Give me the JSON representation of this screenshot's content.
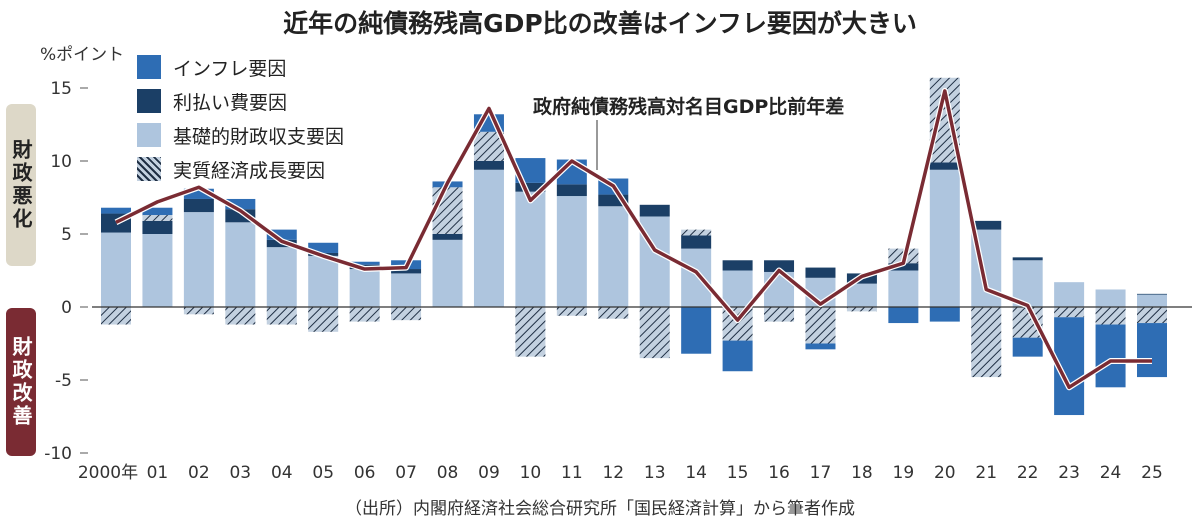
{
  "title": "近年の純債務残高GDP比の改善はインフレ要因が大きい",
  "unit": "%ポイント",
  "side_labels": {
    "worse": "財政悪化",
    "better": "財政改善"
  },
  "annotation": "政府純債務残高対名目GDP比前年差",
  "source": "（出所）内閣府経済社会総合研究所「国民経済計算」から筆者作成",
  "colors": {
    "inflation": "#2e6db4",
    "interest": "#1b3f66",
    "primary": "#aec5de",
    "growth_bg": "#c3d1e0",
    "growth_line": "#1f2f44",
    "line": "#7a2b33"
  },
  "chart_data": {
    "type": "bar",
    "stacked": true,
    "title": "近年の純債務残高GDP比の改善はインフレ要因が大きい",
    "ylabel": "%ポイント",
    "ylim": [
      -10,
      15
    ],
    "yticks": [
      "-10",
      "-5",
      "0",
      "5",
      "10",
      "15"
    ],
    "categories": [
      "2000年",
      "01",
      "02",
      "03",
      "04",
      "05",
      "06",
      "07",
      "08",
      "09",
      "10",
      "11",
      "12",
      "13",
      "14",
      "15",
      "16",
      "17",
      "18",
      "19",
      "20",
      "21",
      "22",
      "23",
      "24",
      "25"
    ],
    "series": [
      {
        "name": "インフレ要因",
        "key": "inflation",
        "values": [
          0.4,
          0.5,
          0.7,
          0.7,
          0.7,
          0.7,
          0.2,
          0.6,
          0.4,
          1.2,
          1.7,
          1.7,
          1.1,
          0,
          -3.2,
          -2.1,
          0,
          -0.4,
          0,
          -1.1,
          -1.0,
          0,
          -1.3,
          -6.7,
          -4.3,
          -3.7
        ]
      },
      {
        "name": "利払い費要因",
        "key": "interest",
        "values": [
          1.3,
          0.9,
          0.9,
          0.9,
          0.5,
          0.2,
          0.3,
          0.3,
          0.4,
          0.6,
          0.6,
          0.8,
          0.8,
          0.8,
          0.9,
          0.7,
          0.8,
          0.7,
          0.7,
          0.5,
          0.5,
          0.6,
          0.2,
          0,
          0,
          0.05
        ]
      },
      {
        "name": "基礎的財政収支要因",
        "key": "primary",
        "values": [
          5.1,
          5.0,
          6.5,
          5.8,
          4.1,
          3.5,
          2.6,
          2.3,
          4.6,
          9.4,
          7.9,
          7.6,
          6.9,
          6.2,
          4.0,
          2.5,
          2.4,
          2.0,
          1.6,
          2.5,
          9.4,
          5.3,
          3.2,
          1.7,
          1.2,
          0.85
        ]
      },
      {
        "name": "実質経済成長要因",
        "key": "growth",
        "values": [
          -1.2,
          0.4,
          -0.5,
          -1.2,
          -1.2,
          -1.7,
          -1.0,
          -0.9,
          3.2,
          2.0,
          -3.4,
          -0.6,
          -0.8,
          -3.5,
          0.4,
          -2.3,
          -1.0,
          -2.5,
          -0.3,
          1.0,
          5.8,
          -4.8,
          -2.1,
          -0.7,
          -1.2,
          -1.1
        ]
      }
    ],
    "line": {
      "name": "政府純債務残高対名目GDP比前年差",
      "values": [
        5.8,
        7.2,
        8.2,
        6.6,
        4.5,
        3.5,
        2.6,
        2.7,
        8.5,
        13.6,
        7.3,
        10.0,
        8.3,
        3.9,
        2.4,
        -0.9,
        2.5,
        0.2,
        2.1,
        3.0,
        14.8,
        1.2,
        0.1,
        -5.5,
        -3.7,
        -3.7
      ]
    },
    "legend_position": "top-left",
    "grid": false
  }
}
